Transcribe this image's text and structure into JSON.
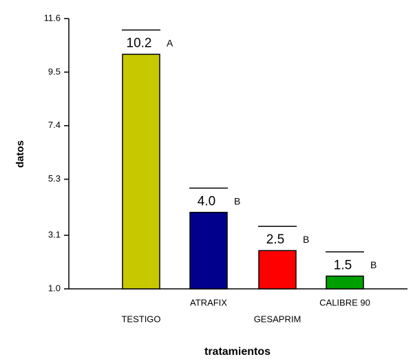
{
  "chart_data": {
    "type": "bar",
    "categories": [
      "TESTIGO",
      "ATRAFIX",
      "GESAPRIM",
      "CALIBRE 90"
    ],
    "values": [
      10.2,
      4.0,
      2.5,
      1.5
    ],
    "value_labels": [
      "10.2",
      "4.0",
      "2.5",
      "1.5"
    ],
    "errors": [
      0.95,
      0.95,
      0.95,
      0.95
    ],
    "letters": [
      "A",
      "B",
      "B",
      "B"
    ],
    "colors": [
      "#c8c800",
      "#00008c",
      "#ff0000",
      "#00a000"
    ],
    "xlabel": "tratamientos",
    "ylabel": "datos",
    "ylim": [
      1.0,
      11.6
    ],
    "yticks": [
      {
        "value": 1.0,
        "label": "1.0"
      },
      3.1,
      5.3,
      7.4,
      9.5,
      11.6
    ],
    "grid": false
  }
}
